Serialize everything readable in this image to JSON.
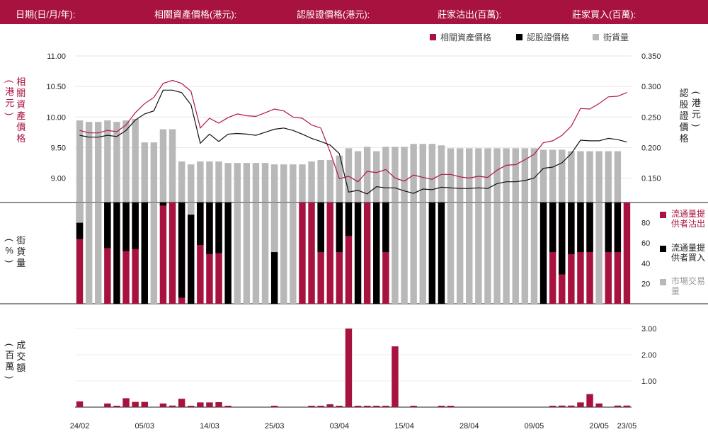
{
  "header": {
    "date": "日期(日/月/年):",
    "underlying": "相關資產價格(港元):",
    "warrant": "認股證價格(港元):",
    "sold": "莊家沽出(百萬):",
    "bought": "莊家買入(百萬):"
  },
  "legend": {
    "underlying": "相關資產價格",
    "warrant": "認股證價格",
    "volume": "街貨量"
  },
  "axes": {
    "left_label": "相關資產價格",
    "left_unit": "港元",
    "right_label": "認股證價格",
    "right_unit": "港元",
    "mid_label": "街貨量",
    "mid_unit": "%",
    "bot_label": "成交額",
    "bot_unit": "百萬"
  },
  "side_legend": {
    "sold": "流通量提供者沽出",
    "bought": "流通量提供者買入",
    "market": "市場交易量"
  },
  "colors": {
    "brand": "#a8123e",
    "black": "#000000",
    "grey": "#b8b8b8",
    "line_red": "#b01645",
    "line_black": "#111111"
  },
  "chart_data": {
    "type": "line",
    "x_labels": [
      "24/02",
      "05/03",
      "14/03",
      "25/03",
      "03/04",
      "15/04",
      "28/04",
      "09/05",
      "20/05",
      "23/05"
    ],
    "x_label_index": [
      0,
      7,
      14,
      21,
      28,
      35,
      42,
      49,
      56,
      59
    ],
    "n": 60,
    "underlying_axis": {
      "ticks": [
        9.0,
        9.5,
        10.0,
        10.5,
        11.0
      ],
      "ylim": [
        8.6,
        11.0
      ]
    },
    "warrant_axis": {
      "ticks": [
        0.15,
        0.2,
        0.25,
        0.3,
        0.35
      ],
      "ylim": [
        0.11,
        0.35
      ]
    },
    "underlying_price": [
      9.78,
      9.74,
      9.74,
      9.78,
      9.76,
      9.87,
      10.07,
      10.22,
      10.32,
      10.55,
      10.6,
      10.55,
      10.42,
      9.82,
      9.98,
      9.9,
      9.99,
      10.05,
      10.02,
      10.01,
      10.07,
      10.13,
      10.1,
      10.0,
      9.98,
      9.87,
      9.82,
      9.43,
      8.99,
      9.03,
      8.94,
      9.11,
      9.09,
      9.14,
      9.0,
      8.95,
      9.05,
      9.01,
      8.98,
      9.06,
      9.06,
      9.02,
      9.0,
      9.03,
      9.01,
      9.13,
      9.21,
      9.22,
      9.3,
      9.39,
      9.58,
      9.61,
      9.7,
      9.85,
      10.14,
      10.13,
      10.22,
      10.33,
      10.34,
      10.4
    ],
    "warrant_price": [
      0.22,
      0.217,
      0.217,
      0.22,
      0.218,
      0.228,
      0.245,
      0.255,
      0.26,
      0.294,
      0.294,
      0.29,
      0.27,
      0.207,
      0.222,
      0.21,
      0.222,
      0.223,
      0.222,
      0.22,
      0.225,
      0.23,
      0.232,
      0.228,
      0.222,
      0.215,
      0.21,
      0.204,
      0.19,
      0.127,
      0.13,
      0.124,
      0.136,
      0.134,
      0.134,
      0.129,
      0.125,
      0.132,
      0.131,
      0.135,
      0.134,
      0.133,
      0.133,
      0.134,
      0.133,
      0.141,
      0.144,
      0.144,
      0.146,
      0.15,
      0.166,
      0.168,
      0.175,
      0.19,
      0.212,
      0.211,
      0.211,
      0.215,
      0.213,
      0.209
    ],
    "street_volume_pct": [
      56,
      55,
      55,
      56,
      55,
      56,
      57,
      41,
      41,
      50,
      50,
      28,
      26,
      28,
      28,
      28,
      27,
      27,
      27,
      27,
      27,
      26,
      26,
      26,
      26,
      28,
      29,
      29,
      32,
      37,
      35,
      38,
      35,
      38,
      38,
      38,
      40,
      40,
      40,
      39,
      37,
      37,
      37,
      37,
      37,
      37,
      37,
      37,
      37,
      37,
      36,
      36,
      36,
      35,
      35,
      35,
      35,
      35,
      35,
      0
    ],
    "flow_pct": [
      [
        0,
        0,
        0,
        {
          "k": 38,
          "b": 23
        },
        0,
        0,
        0,
        0
      ],
      0
    ],
    "flow_colors": [
      "grey",
      "grey",
      "grey",
      "mix1",
      "grey",
      "red",
      "black",
      "red",
      "red",
      "black",
      "grey",
      "grey",
      "mix2",
      "red",
      "black",
      "mix3",
      "red",
      "black",
      "red",
      "black",
      "red",
      "grey",
      "grey",
      "grey",
      "grey",
      "grey",
      "grey",
      "grey",
      "grey",
      "grey",
      "grey",
      "red",
      "red",
      "red",
      "black",
      "red",
      "red",
      "mix4",
      "red",
      "black",
      "red",
      "grey",
      "grey",
      "grey",
      "grey",
      "black",
      "black",
      "grey",
      "grey",
      "grey",
      "grey",
      "grey",
      "grey",
      "grey",
      "grey",
      "grey",
      "grey",
      "grey",
      "grey",
      "grey"
    ],
    "market_pct": [
      30,
      100,
      100,
      100,
      100,
      100,
      100,
      100,
      100,
      100,
      100,
      100,
      100,
      100,
      100,
      100,
      100,
      100,
      100,
      100,
      100,
      100,
      100,
      100,
      100,
      100,
      100,
      100,
      100,
      100,
      100,
      100,
      100,
      100,
      100,
      100,
      100,
      100,
      100,
      100,
      100,
      100,
      100,
      100,
      100,
      100,
      100,
      100,
      100,
      100,
      100,
      100,
      100,
      100,
      100,
      100,
      100,
      100,
      100,
      100
    ],
    "bars_mid": [
      [
        "grey",
        100
      ],
      [
        "grey",
        100
      ],
      [
        "grey",
        100
      ],
      [
        "grey",
        100
      ],
      [
        "grey",
        100
      ],
      [
        "grey",
        100
      ],
      [
        "grey",
        100
      ],
      [
        "grey",
        100
      ],
      [
        "grey",
        100
      ],
      [
        "grey",
        100
      ],
      [
        "grey",
        100
      ],
      [
        "grey",
        100
      ],
      [
        "grey",
        100
      ],
      [
        "grey",
        100
      ],
      [
        "grey",
        100
      ],
      [
        "grey",
        100
      ],
      [
        "grey",
        100
      ],
      [
        "grey",
        100
      ],
      [
        "grey",
        100
      ],
      [
        "grey",
        100
      ],
      [
        "grey",
        100
      ],
      [
        "grey",
        100
      ],
      [
        "grey",
        100
      ],
      [
        "grey",
        100
      ],
      [
        "grey",
        100
      ],
      [
        "grey",
        100
      ],
      [
        "grey",
        100
      ],
      [
        "grey",
        100
      ],
      [
        "grey",
        100
      ],
      [
        "grey",
        100
      ],
      [
        "grey",
        100
      ],
      [
        "grey",
        100
      ],
      [
        "grey",
        100
      ],
      [
        "grey",
        100
      ],
      [
        "grey",
        100
      ],
      [
        "grey",
        100
      ],
      [
        "grey",
        100
      ],
      [
        "grey",
        100
      ],
      [
        "grey",
        100
      ],
      [
        "grey",
        100
      ],
      [
        "grey",
        100
      ],
      [
        "grey",
        100
      ],
      [
        "grey",
        100
      ],
      [
        "grey",
        100
      ],
      [
        "grey",
        100
      ],
      [
        "grey",
        100
      ],
      [
        "grey",
        100
      ],
      [
        "grey",
        100
      ],
      [
        "grey",
        100
      ],
      [
        "grey",
        100
      ],
      [
        "grey",
        100
      ],
      [
        "grey",
        100
      ],
      [
        "grey",
        100
      ],
      [
        "grey",
        100
      ],
      [
        "grey",
        100
      ],
      [
        "grey",
        100
      ],
      [
        "grey",
        100
      ],
      [
        "grey",
        100
      ],
      [
        "grey",
        100
      ],
      [
        "grey",
        100
      ]
    ],
    "mid_stacks": [
      [
        [
          "red",
          100
        ],
        [
          "black",
          36
        ],
        [
          "grey",
          20
        ]
      ],
      [
        [
          "grey",
          100
        ]
      ],
      [
        [
          "grey",
          100
        ]
      ],
      [
        [
          "red",
          100
        ],
        [
          "black",
          45
        ]
      ],
      [
        [
          "black",
          100
        ]
      ],
      [
        [
          "red",
          100
        ],
        [
          "black",
          48
        ]
      ],
      [
        [
          "red",
          100
        ],
        [
          "black",
          46
        ]
      ],
      [
        [
          "black",
          100
        ]
      ],
      [
        [
          "grey",
          100
        ]
      ],
      [
        [
          "red",
          100
        ],
        [
          "black",
          3
        ]
      ],
      [
        [
          "red",
          100
        ]
      ],
      [
        [
          "red",
          100
        ],
        [
          "black",
          94
        ]
      ],
      [
        [
          "black",
          100
        ],
        [
          "grey",
          12
        ]
      ],
      [
        [
          "red",
          100
        ],
        [
          "black",
          42
        ]
      ],
      [
        [
          "red",
          100
        ],
        [
          "black",
          51
        ]
      ],
      [
        [
          "red",
          100
        ],
        [
          "black",
          50
        ]
      ],
      [
        [
          "black",
          100
        ]
      ],
      [
        [
          "grey",
          100
        ]
      ],
      [
        [
          "grey",
          100
        ]
      ],
      [
        [
          "grey",
          100
        ]
      ],
      [
        [
          "grey",
          100
        ]
      ],
      [
        [
          "black",
          100
        ],
        [
          "grey",
          49
        ]
      ],
      [
        [
          "grey",
          100
        ]
      ],
      [
        [
          "grey",
          100
        ]
      ],
      [
        [
          "red",
          100
        ]
      ],
      [
        [
          "red",
          100
        ]
      ],
      [
        [
          "red",
          100
        ],
        [
          "black",
          49
        ]
      ],
      [
        [
          "red",
          100
        ]
      ],
      [
        [
          "red",
          100
        ],
        [
          "black",
          49
        ]
      ],
      [
        [
          "red",
          100
        ],
        [
          "black",
          33
        ]
      ],
      [
        [
          "black",
          100
        ]
      ],
      [
        [
          "red",
          100
        ]
      ],
      [
        [
          "black",
          100
        ]
      ],
      [
        [
          "red",
          100
        ],
        [
          "black",
          49
        ]
      ],
      [
        [
          "grey",
          100
        ]
      ],
      [
        [
          "grey",
          100
        ]
      ],
      [
        [
          "grey",
          100
        ]
      ],
      [
        [
          "grey",
          100
        ]
      ],
      [
        [
          "black",
          100
        ]
      ],
      [
        [
          "black",
          100
        ]
      ],
      [
        [
          "grey",
          100
        ]
      ],
      [
        [
          "grey",
          100
        ]
      ],
      [
        [
          "grey",
          100
        ]
      ],
      [
        [
          "grey",
          100
        ]
      ],
      [
        [
          "grey",
          100
        ]
      ],
      [
        [
          "grey",
          100
        ]
      ],
      [
        [
          "grey",
          100
        ]
      ],
      [
        [
          "grey",
          100
        ]
      ],
      [
        [
          "grey",
          100
        ]
      ],
      [
        [
          "grey",
          100
        ]
      ],
      [
        [
          "black",
          100
        ]
      ],
      [
        [
          "red",
          100
        ],
        [
          "black",
          49
        ]
      ],
      [
        [
          "red",
          100
        ],
        [
          "black",
          71
        ]
      ],
      [
        [
          "red",
          100
        ],
        [
          "black",
          51
        ]
      ],
      [
        [
          "red",
          100
        ],
        [
          "black",
          49
        ]
      ],
      [
        [
          "red",
          100
        ],
        [
          "black",
          49
        ]
      ],
      [
        [
          "grey",
          100
        ]
      ],
      [
        [
          "red",
          100
        ],
        [
          "black",
          49
        ]
      ],
      [
        [
          "red",
          100
        ],
        [
          "black",
          49
        ]
      ],
      [
        [
          "red",
          100
        ]
      ]
    ],
    "mid_axis": {
      "ticks": [
        20,
        40,
        60,
        80
      ],
      "ylim": [
        0,
        100
      ]
    },
    "turnover": [
      0.22,
      0,
      0,
      0.14,
      0.05,
      0.34,
      0.2,
      0.2,
      0,
      0.14,
      0.06,
      0.32,
      0.05,
      0.18,
      0.18,
      0.19,
      0.05,
      0,
      0,
      0,
      0,
      0.04,
      0,
      0,
      0,
      0.03,
      0.03,
      0.11,
      0.04,
      3.0,
      0.05,
      0.05,
      0.05,
      0.05,
      2.32,
      0,
      0.03,
      0,
      0,
      0.03,
      0.02,
      0,
      0,
      0,
      0,
      0,
      0,
      0,
      0,
      0,
      0,
      0.03,
      0.06,
      0.06,
      0.18,
      0.5,
      0.14,
      0,
      0.06,
      0.06
    ],
    "bot_axis": {
      "ticks": [
        1.0,
        2.0,
        3.0
      ],
      "ylim": [
        0,
        3.0
      ]
    }
  }
}
